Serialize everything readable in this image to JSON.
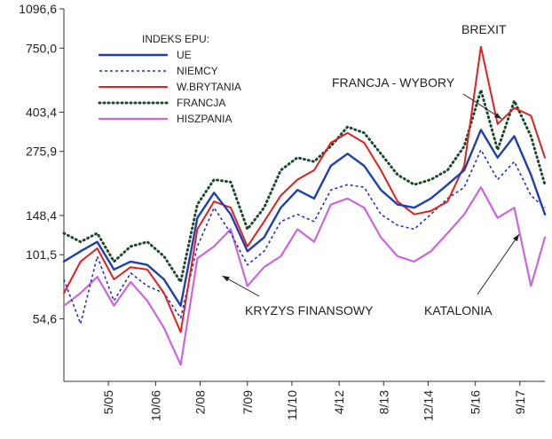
{
  "chart_data": {
    "type": "line",
    "title": "",
    "xlabel": "",
    "ylabel": "",
    "y_scale": "log",
    "ylim": [
      29.8,
      1096.6
    ],
    "xlim": [
      "2004-01",
      "2018-06"
    ],
    "grid": false,
    "legend": {
      "title": "INDEKS EPU:",
      "placement": "top-left",
      "entries": [
        "UE",
        "NIEMCY",
        "W.BRYTANIA",
        "FRANCJA",
        "HISZPANIA"
      ]
    },
    "y_ticks": [
      {
        "value": 1096.6,
        "label": "1096,6"
      },
      {
        "value": 750.0,
        "label": "750,0"
      },
      {
        "value": 403.4,
        "label": "403,4"
      },
      {
        "value": 275.9,
        "label": "275,9"
      },
      {
        "value": 148.4,
        "label": "148,4"
      },
      {
        "value": 101.5,
        "label": "101,5"
      },
      {
        "value": 54.6,
        "label": "54,6"
      }
    ],
    "x_ticks": [
      "5/05",
      "10/06",
      "2/08",
      "7/09",
      "11/10",
      "4/12",
      "8/13",
      "12/14",
      "5/16",
      "9/17"
    ],
    "x_tick_dates": [
      "2005-05",
      "2006-10",
      "2008-02",
      "2009-07",
      "2010-11",
      "2012-04",
      "2013-08",
      "2014-12",
      "2016-05",
      "2017-09"
    ],
    "annotations": [
      {
        "text": "BREXIT",
        "points_to": [
          "2016-06",
          780
        ]
      },
      {
        "text": "FRANCJA - WYBORY",
        "points_to": [
          "2017-05",
          360
        ]
      },
      {
        "text": "KRYZYS FINANSOWY",
        "points_to": [
          "2008-09",
          82
        ]
      },
      {
        "text": "KATALONIA",
        "points_to": [
          "2017-10",
          125
        ]
      }
    ],
    "x": [
      "2004-01",
      "2004-07",
      "2005-01",
      "2005-07",
      "2006-01",
      "2006-07",
      "2007-01",
      "2007-07",
      "2008-01",
      "2008-07",
      "2009-01",
      "2009-07",
      "2010-01",
      "2010-07",
      "2011-01",
      "2011-07",
      "2012-01",
      "2012-07",
      "2013-01",
      "2013-07",
      "2014-01",
      "2014-07",
      "2015-01",
      "2015-07",
      "2016-01",
      "2016-07",
      "2017-01",
      "2017-07",
      "2018-01",
      "2018-06"
    ],
    "series": [
      {
        "name": "UE",
        "values": [
          95,
          105,
          115,
          88,
          95,
          92,
          80,
          62,
          145,
          185,
          150,
          105,
          120,
          160,
          190,
          175,
          240,
          270,
          240,
          190,
          165,
          160,
          175,
          200,
          230,
          340,
          260,
          320,
          220,
          150
        ]
      },
      {
        "name": "NIEMCY",
        "values": [
          80,
          52,
          100,
          65,
          85,
          75,
          70,
          55,
          110,
          160,
          125,
          92,
          105,
          140,
          150,
          140,
          190,
          200,
          195,
          150,
          135,
          130,
          150,
          175,
          195,
          280,
          210,
          250,
          180,
          160
        ]
      },
      {
        "name": "W.BRYTANIA",
        "values": [
          70,
          95,
          108,
          80,
          90,
          88,
          70,
          48,
          130,
          170,
          160,
          110,
          140,
          180,
          210,
          230,
          300,
          330,
          300,
          230,
          170,
          150,
          155,
          170,
          240,
          760,
          360,
          420,
          390,
          260
        ]
      },
      {
        "name": "FRANCJA",
        "values": [
          125,
          115,
          125,
          95,
          110,
          115,
          100,
          78,
          165,
          210,
          205,
          130,
          160,
          230,
          260,
          250,
          290,
          350,
          330,
          270,
          220,
          200,
          210,
          230,
          290,
          500,
          280,
          450,
          320,
          200
        ]
      },
      {
        "name": "HISZPANIA",
        "values": [
          62,
          70,
          82,
          62,
          78,
          65,
          50,
          35,
          98,
          110,
          130,
          75,
          90,
          100,
          130,
          115,
          165,
          175,
          160,
          120,
          100,
          95,
          105,
          125,
          150,
          195,
          145,
          160,
          75,
          120
        ]
      }
    ]
  },
  "colors": {
    "UE": "#1e3fb0",
    "NIEMCY": "#2030c8",
    "W.BRYTANIA": "#e02020",
    "FRANCJA": "#1a4a2a",
    "HISZPANIA": "#cc66dd",
    "axis": "#333333"
  }
}
